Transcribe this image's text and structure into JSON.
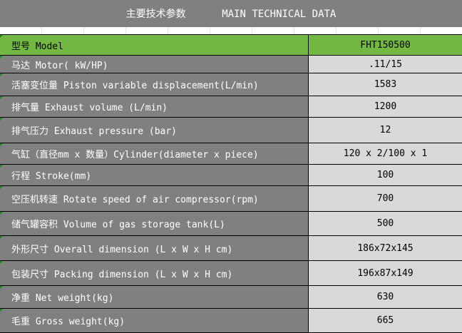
{
  "title": "主要技术参数      MAIN TECHNICAL DATA",
  "rows": [
    {
      "label": "型号 Model",
      "value": "FHT150500"
    },
    {
      "label": "马达 Motor( kW/HP)",
      "value": ".11/15"
    },
    {
      "label": "活塞变位量 Piston variable displacement(L/min)",
      "value": "1583"
    },
    {
      "label": "排气量 Exhaust volume (L/min)",
      "value": "1200"
    },
    {
      "label": "排气压力 Exhaust pressure (bar)",
      "value": "12"
    },
    {
      "label": "气缸（直径mm x 数量）Cylinder(diameter x piece)",
      "value": "120 x 2/100 x 1"
    },
    {
      "label": "行程 Stroke(mm)",
      "value": "100"
    },
    {
      "label": "空压机转速 Rotate speed of air compressor(rpm)",
      "value": "700"
    },
    {
      "label": "储气罐容积 Volume of gas storage tank(L)",
      "value": "500"
    },
    {
      "label": "外形尺寸 Overall dimension (L x W x H cm)",
      "value": "186x72x145"
    },
    {
      "label": "包装尺寸 Packing dimension (L x W x H cm)",
      "value": "196x87x149"
    },
    {
      "label": "净重 Net weight(kg)",
      "value": "630"
    },
    {
      "label": "毛重 Gross weight(kg)",
      "value": "665"
    }
  ]
}
